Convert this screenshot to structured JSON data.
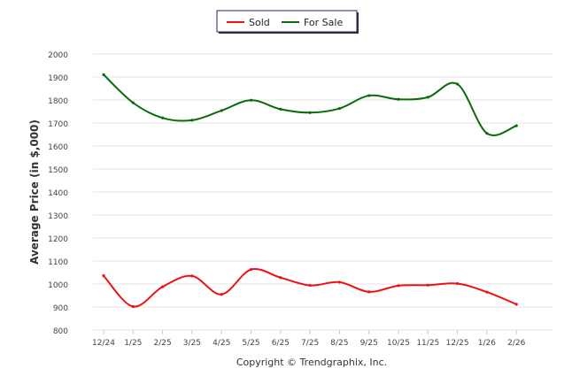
{
  "chart_data": {
    "type": "line",
    "categories": [
      "12/24",
      "1/25",
      "2/25",
      "3/25",
      "4/25",
      "5/25",
      "6/25",
      "7/25",
      "8/25",
      "9/25",
      "10/25",
      "11/25",
      "12/25",
      "1/26",
      "2/26"
    ],
    "series": [
      {
        "name": "Sold",
        "color": "#ee1111",
        "values": [
          1036,
          902,
          988,
          1035,
          955,
          1063,
          1028,
          994,
          1008,
          966,
          993,
          995,
          1002,
          965,
          912
        ]
      },
      {
        "name": "For Sale",
        "color": "#0a6b0a",
        "values": [
          1910,
          1788,
          1722,
          1712,
          1754,
          1799,
          1760,
          1745,
          1763,
          1819,
          1803,
          1812,
          1869,
          1655,
          1688
        ]
      }
    ],
    "ylabel": "Average Price (in $,000)",
    "xlabel": "",
    "ylim": [
      800,
      2000
    ],
    "yticks": [
      "800",
      "900",
      "1000",
      "1100",
      "1200",
      "1300",
      "1400",
      "1500",
      "1600",
      "1700",
      "1800",
      "1900",
      "2000"
    ],
    "grid": true,
    "legend_position": "top-center",
    "smooth": true
  },
  "footer": "Copyright © Trendgraphix, Inc."
}
